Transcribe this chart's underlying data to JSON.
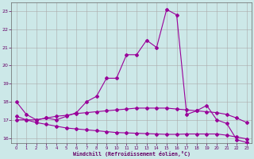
{
  "xlabel": "Windchill (Refroidissement éolien,°C)",
  "bg_color": "#cce8e8",
  "grid_color": "#aaaaaa",
  "line_color": "#990099",
  "xlim": [
    -0.5,
    23.5
  ],
  "ylim": [
    15.7,
    23.5
  ],
  "yticks": [
    16,
    17,
    18,
    19,
    20,
    21,
    22,
    23
  ],
  "xticks": [
    0,
    1,
    2,
    3,
    4,
    5,
    6,
    7,
    8,
    9,
    10,
    11,
    12,
    13,
    14,
    15,
    16,
    17,
    18,
    19,
    20,
    21,
    22,
    23
  ],
  "line1_x": [
    0,
    1,
    2,
    3,
    4,
    5,
    6,
    7,
    8,
    9,
    10,
    11,
    12,
    13,
    14,
    15,
    16,
    17,
    18,
    19,
    20,
    21,
    22,
    23
  ],
  "line1_y": [
    18.0,
    17.3,
    17.0,
    17.1,
    17.0,
    17.2,
    17.4,
    18.0,
    18.3,
    19.3,
    19.3,
    20.6,
    20.6,
    21.4,
    21.0,
    23.1,
    22.8,
    17.3,
    17.5,
    17.8,
    17.0,
    16.8,
    15.9,
    15.75
  ],
  "line2_x": [
    0,
    1,
    2,
    3,
    4,
    5,
    6,
    7,
    8,
    9,
    10,
    11,
    12,
    13,
    14,
    15,
    16,
    17,
    18,
    19,
    20,
    21,
    22,
    23
  ],
  "line2_y": [
    17.2,
    17.0,
    17.0,
    17.1,
    17.2,
    17.25,
    17.35,
    17.4,
    17.45,
    17.5,
    17.55,
    17.6,
    17.65,
    17.65,
    17.65,
    17.65,
    17.6,
    17.55,
    17.5,
    17.45,
    17.4,
    17.3,
    17.1,
    16.85
  ],
  "line3_x": [
    0,
    1,
    2,
    3,
    4,
    5,
    6,
    7,
    8,
    9,
    10,
    11,
    12,
    13,
    14,
    15,
    16,
    17,
    18,
    19,
    20,
    21,
    22,
    23
  ],
  "line3_y": [
    17.0,
    17.0,
    16.85,
    16.75,
    16.65,
    16.55,
    16.5,
    16.45,
    16.4,
    16.35,
    16.3,
    16.28,
    16.26,
    16.24,
    16.22,
    16.2,
    16.2,
    16.22,
    16.22,
    16.22,
    16.22,
    16.15,
    16.05,
    15.95
  ]
}
